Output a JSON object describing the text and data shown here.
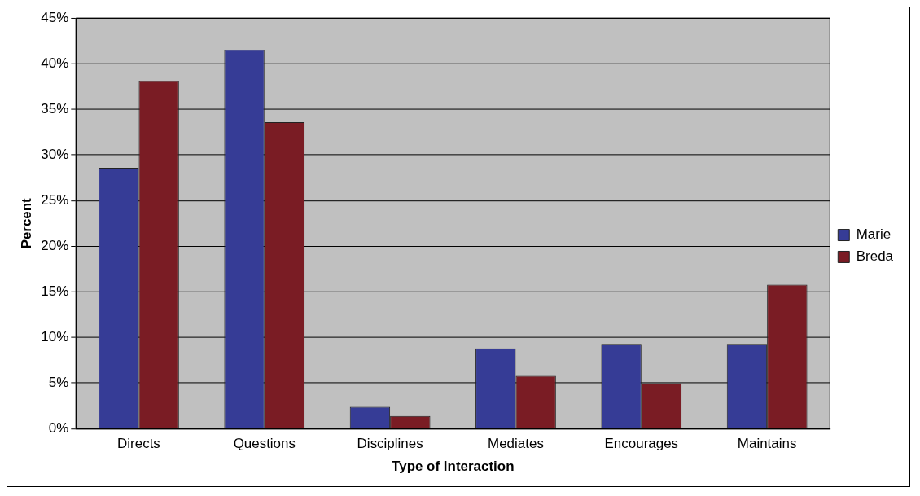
{
  "chart_data": {
    "type": "bar",
    "xlabel": "Type of Interaction",
    "ylabel": "Percent",
    "categories": [
      "Directs",
      "Questions",
      "Disciplines",
      "Mediates",
      "Encourages",
      "Maintains"
    ],
    "series": [
      {
        "name": "Marie",
        "color": "#363c96",
        "values": [
          28.6,
          41.5,
          2.4,
          8.8,
          9.3,
          9.3
        ]
      },
      {
        "name": "Breda",
        "color": "#7a1c24",
        "values": [
          38.1,
          33.6,
          1.4,
          5.8,
          5.0,
          15.8
        ]
      }
    ],
    "ylim": [
      0,
      45
    ],
    "yticks": [
      {
        "value": 0,
        "label": "0%"
      },
      {
        "value": 5,
        "label": "5%"
      },
      {
        "value": 10,
        "label": "10%"
      },
      {
        "value": 15,
        "label": "15%"
      },
      {
        "value": 20,
        "label": "20%"
      },
      {
        "value": 25,
        "label": "25%"
      },
      {
        "value": 30,
        "label": "30%"
      },
      {
        "value": 35,
        "label": "35%"
      },
      {
        "value": 40,
        "label": "40%"
      },
      {
        "value": 45,
        "label": "45%"
      }
    ],
    "grid": "y",
    "legend": "right"
  }
}
